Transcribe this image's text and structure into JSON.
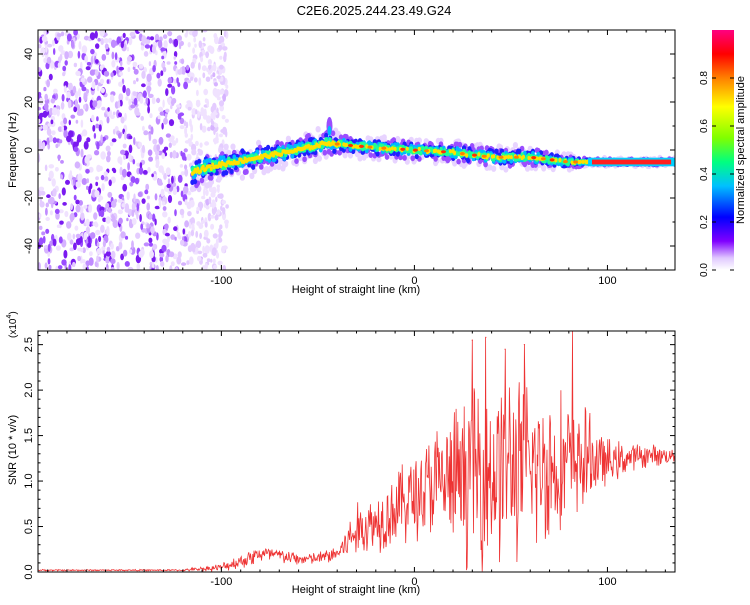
{
  "figure_title": "C2E6.2025.244.23.49.G24",
  "chart_data": [
    {
      "type": "heatmap",
      "title": "C2E6.2025.244.23.49.G24",
      "xlabel": "Height of straight line (km)",
      "ylabel": "Frequency (Hz)",
      "xlim": [
        -195,
        135
      ],
      "ylim": [
        -50,
        50
      ],
      "x_ticks": [
        -100,
        0,
        100
      ],
      "y_ticks": [
        -40,
        -20,
        0,
        20,
        40
      ],
      "x_tick_labels": [
        "-100",
        "0",
        "100"
      ],
      "y_tick_labels": [
        "-40",
        "-20",
        "0",
        "20",
        "40"
      ],
      "noise_region_x": [
        -195,
        -105
      ],
      "signal_ridge": {
        "x": [
          -115,
          -100,
          -80,
          -60,
          -45,
          -35,
          -20,
          0,
          20,
          40,
          60,
          80,
          90,
          135
        ],
        "y": [
          -9,
          -6,
          -3,
          0,
          3,
          2,
          1,
          0,
          -1,
          -3,
          -3,
          -5,
          -5,
          -5
        ],
        "spread_hz": [
          5,
          5,
          4,
          4,
          4,
          3,
          3,
          3,
          3,
          3,
          3,
          2,
          1,
          1
        ]
      },
      "spike": {
        "x": -44,
        "y": 12
      },
      "colorbar": {
        "label": "Normalized spectral amplitude",
        "range": [
          0,
          1
        ],
        "ticks": [
          0,
          0.2,
          0.4,
          0.6,
          0.8
        ],
        "tick_labels": [
          "0.0",
          "0.2",
          "0.4",
          "0.6",
          "0.8"
        ],
        "colors": [
          "#ffffff",
          "#e0c8ff",
          "#8000ff",
          "#0000ff",
          "#00c0ff",
          "#00ff80",
          "#80ff00",
          "#ffff00",
          "#ff8000",
          "#ff0000",
          "#ff0080"
        ]
      }
    },
    {
      "type": "line",
      "xlabel": "Height of straight line (km)",
      "ylabel": "SNR (10 * v/v)",
      "y_scale_label": "(x10",
      "y_scale_exponent": "4",
      "xlim": [
        -195,
        135
      ],
      "ylim": [
        0,
        2.65
      ],
      "x_ticks": [
        -100,
        0,
        100
      ],
      "y_ticks": [
        0,
        0.5,
        1.0,
        1.5,
        2.0,
        2.5
      ],
      "x_tick_labels": [
        "-100",
        "0",
        "100"
      ],
      "y_tick_labels": [
        "0.0",
        "0.5",
        "1.0",
        "1.5",
        "2.0",
        "2.5"
      ],
      "color": "#ee3333",
      "envelope": {
        "x": [
          -195,
          -120,
          -100,
          -90,
          -80,
          -70,
          -60,
          -50,
          -40,
          -30,
          -20,
          -10,
          0,
          10,
          20,
          30,
          40,
          50,
          60,
          70,
          80,
          90,
          100,
          110,
          120,
          135
        ],
        "mean": [
          0.02,
          0.02,
          0.05,
          0.12,
          0.2,
          0.18,
          0.14,
          0.15,
          0.2,
          0.45,
          0.55,
          0.7,
          0.85,
          0.95,
          1.0,
          1.05,
          1.1,
          1.15,
          1.15,
          1.15,
          1.2,
          1.25,
          1.2,
          1.25,
          1.28,
          1.28
        ],
        "amplitude": [
          0.01,
          0.01,
          0.05,
          0.1,
          0.12,
          0.1,
          0.08,
          0.08,
          0.12,
          0.35,
          0.4,
          0.5,
          0.6,
          0.75,
          0.9,
          1.2,
          1.25,
          1.2,
          1.1,
          1.0,
          0.9,
          0.6,
          0.3,
          0.2,
          0.15,
          0.1
        ]
      },
      "peaks": [
        {
          "x": 30,
          "y": 2.55
        },
        {
          "x": 37,
          "y": 2.58
        },
        {
          "x": 47,
          "y": 2.45
        },
        {
          "x": 57,
          "y": 2.5
        },
        {
          "x": 82,
          "y": 2.65
        }
      ]
    }
  ]
}
